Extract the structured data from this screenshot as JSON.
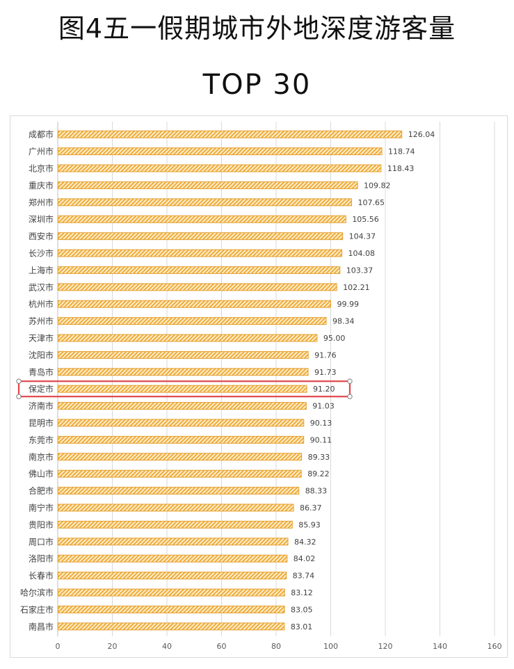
{
  "title": "图4五一假期城市外地深度游客量",
  "subtitle": "TOP 30",
  "chart_data": {
    "type": "bar",
    "orientation": "horizontal",
    "title": "图4五一假期城市外地深度游客量",
    "subtitle": "TOP 30",
    "xlabel": "",
    "ylabel": "",
    "xlim": [
      0,
      160
    ],
    "xticks": [
      0,
      20,
      40,
      60,
      80,
      100,
      120,
      140,
      160
    ],
    "grid": "vertical",
    "legend": "none",
    "bar_color": "#f2b54a",
    "bar_pattern": "diagonal-hatch",
    "highlight_color": "#e0474c",
    "highlight_category": "保定市",
    "categories": [
      "成都市",
      "广州市",
      "北京市",
      "重庆市",
      "郑州市",
      "深圳市",
      "西安市",
      "长沙市",
      "上海市",
      "武汉市",
      "杭州市",
      "苏州市",
      "天津市",
      "沈阳市",
      "青岛市",
      "保定市",
      "济南市",
      "昆明市",
      "东莞市",
      "南京市",
      "佛山市",
      "合肥市",
      "南宁市",
      "贵阳市",
      "周口市",
      "洛阳市",
      "长春市",
      "哈尔滨市",
      "石家庄市",
      "南昌市"
    ],
    "values": [
      126.04,
      118.74,
      118.43,
      109.82,
      107.65,
      105.56,
      104.37,
      104.08,
      103.37,
      102.21,
      99.99,
      98.34,
      95.0,
      91.76,
      91.73,
      91.2,
      91.03,
      90.13,
      90.11,
      89.33,
      89.22,
      88.33,
      86.37,
      85.93,
      84.32,
      84.02,
      83.74,
      83.12,
      83.05,
      83.01
    ],
    "value_labels": [
      "126.04",
      "118.74",
      "118.43",
      "109.82",
      "107.65",
      "105.56",
      "104.37",
      "104.08",
      "103.37",
      "102.21",
      "99.99",
      "98.34",
      "95.00",
      "91.76",
      "91.73",
      "91.20",
      "91.03",
      "90.13",
      "90.11",
      "89.33",
      "89.22",
      "88.33",
      "86.37",
      "85.93",
      "84.32",
      "84.02",
      "83.74",
      "83.12",
      "83.05",
      "83.01"
    ]
  }
}
